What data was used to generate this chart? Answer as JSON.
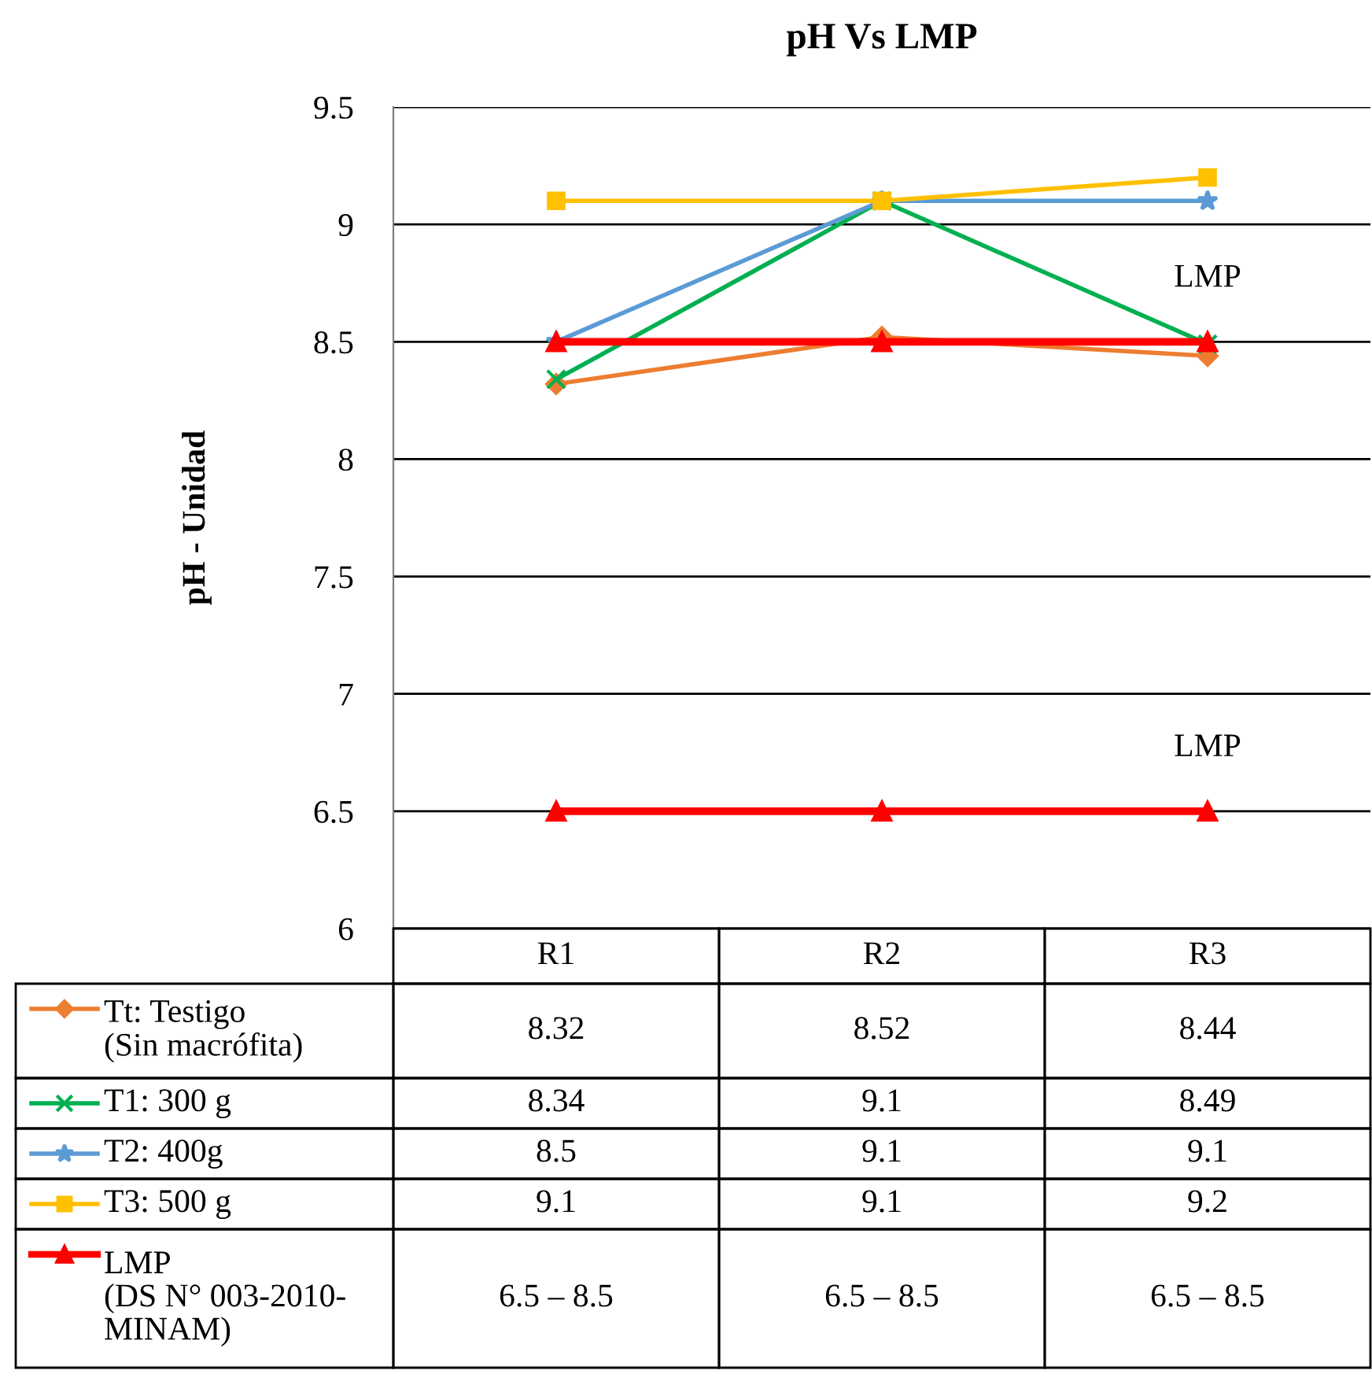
{
  "chart_data": {
    "type": "line",
    "title": "pH Vs LMP",
    "ylabel": "pH - Unidad",
    "categories": [
      "R1",
      "R2",
      "R3"
    ],
    "series": [
      {
        "name": "Tt: Testigo\n(Sin macrófita)",
        "color": "#ed7d31",
        "marker": "diamond",
        "values": [
          8.32,
          8.52,
          8.44
        ],
        "value_labels": [
          "8.32",
          "8.52",
          "8.44"
        ]
      },
      {
        "name": "T1: 300 g",
        "color": "#00b050",
        "marker": "cross",
        "values": [
          8.34,
          9.1,
          8.49
        ],
        "value_labels": [
          "8.34",
          "9.1",
          "8.49"
        ]
      },
      {
        "name": "T2: 400g",
        "color": "#5b9bd5",
        "marker": "star",
        "values": [
          8.5,
          9.1,
          9.1
        ],
        "value_labels": [
          "8.5",
          "9.1",
          "9.1"
        ]
      },
      {
        "name": "T3: 500 g",
        "color": "#ffc000",
        "marker": "square",
        "values": [
          9.1,
          9.1,
          9.2
        ],
        "value_labels": [
          "9.1",
          "9.1",
          "9.2"
        ]
      },
      {
        "name": "LMP\n(DS N° 003-2010-\nMINAM)",
        "color": "#ff0000",
        "marker": "triangle",
        "values": [
          8.5,
          8.5,
          8.5
        ]
      },
      {
        "color": "#ff0000",
        "marker": "triangle",
        "values": [
          6.5,
          6.5,
          6.5
        ]
      }
    ],
    "annotations": [
      {
        "text": "LMP",
        "x": "R3",
        "y": 8.5
      },
      {
        "text": "LMP",
        "x": "R3",
        "y": 6.5
      },
      "6.5 – 8.5",
      "6.5 – 8.5",
      "6.5 – 8.5"
    ],
    "ylim": [
      6,
      9.5
    ],
    "yticks": [
      6,
      6.5,
      7,
      7.5,
      8,
      8.5,
      9,
      9.5
    ],
    "grid": "y",
    "legend": "bottom"
  }
}
